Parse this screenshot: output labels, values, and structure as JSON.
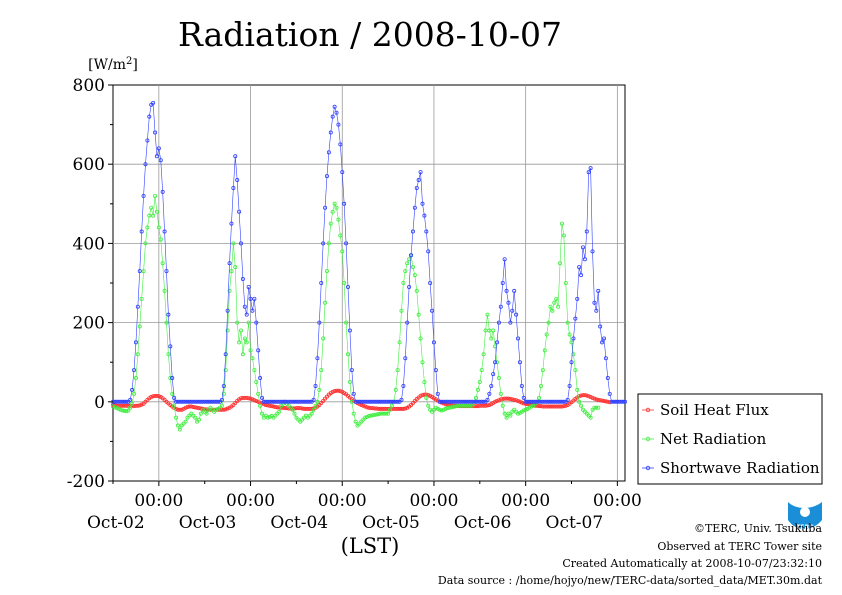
{
  "chart_data": {
    "type": "line",
    "title": "Radiation / 2008-10-07",
    "ylabel": "[W/m2]",
    "xlabel": "(LST)",
    "ylim": [
      -200,
      800
    ],
    "yticks": [
      -200,
      0,
      200,
      400,
      600,
      800
    ],
    "grid": true,
    "legend": "right",
    "x_tick_time": "00:00",
    "x_tick_days": [
      "Oct-02",
      "Oct-03",
      "Oct-04",
      "Oct-05",
      "Oct-06",
      "Oct-07"
    ],
    "x_start": "2008-10-01T12:00",
    "x_interval_minutes": 30,
    "series": [
      {
        "name": "Soil Heat Flux",
        "color": "#ff3030",
        "values": [
          -8,
          -9,
          -10,
          -10,
          -10,
          -10,
          -10,
          -10,
          -10,
          -10,
          -10,
          -11,
          -10,
          -10,
          -9,
          -7,
          -5,
          0,
          5,
          9,
          12,
          14,
          15,
          15,
          14,
          12,
          9,
          5,
          0,
          -4,
          -8,
          -12,
          -15,
          -18,
          -20,
          -20,
          -20,
          -18,
          -15,
          -13,
          -12,
          -12,
          -13,
          -14,
          -15,
          -16,
          -17,
          -18,
          -19,
          -19,
          -20,
          -20,
          -20,
          -20,
          -20,
          -20,
          -20,
          -20,
          -20,
          -19,
          -17,
          -15,
          -12,
          -8,
          -3,
          2,
          6,
          9,
          10,
          10,
          10,
          9,
          8,
          6,
          4,
          2,
          0,
          -2,
          -4,
          -6,
          -8,
          -9,
          -10,
          -11,
          -12,
          -13,
          -14,
          -14,
          -15,
          -15,
          -16,
          -16,
          -17,
          -17,
          -17,
          -17,
          -16,
          -16,
          -16,
          -17,
          -18,
          -18,
          -18,
          -18,
          -18,
          -17,
          -15,
          -12,
          -8,
          -3,
          2,
          8,
          13,
          18,
          22,
          25,
          27,
          28,
          28,
          27,
          25,
          22,
          19,
          15,
          11,
          7,
          3,
          0,
          -3,
          -6,
          -8,
          -10,
          -12,
          -14,
          -15,
          -16,
          -16,
          -17,
          -17,
          -18,
          -18,
          -18,
          -18,
          -18,
          -18,
          -18,
          -18,
          -18,
          -18,
          -18,
          -18,
          -18,
          -18,
          -17,
          -15,
          -12,
          -8,
          -3,
          2,
          7,
          11,
          15,
          17,
          18,
          18,
          17,
          15,
          12,
          9,
          6,
          3,
          0,
          -2,
          -4,
          -6,
          -7,
          -8,
          -9,
          -10,
          -10,
          -10,
          -11,
          -11,
          -11,
          -11,
          -11,
          -11,
          -11,
          -11,
          -11,
          -11,
          -11,
          -10,
          -10,
          -10,
          -10,
          -9,
          -8,
          -6,
          -3,
          0,
          2,
          4,
          6,
          7,
          8,
          8,
          8,
          7,
          6,
          5,
          4,
          2,
          0,
          -2,
          -4,
          -5,
          -6,
          -7,
          -8,
          -9,
          -10,
          -10,
          -11,
          -11,
          -12,
          -12,
          -12,
          -12,
          -12,
          -12,
          -12,
          -12,
          -12,
          -12,
          -12,
          -11,
          -10,
          -8,
          -5,
          -1,
          3,
          7,
          11,
          14,
          16,
          17,
          17,
          16,
          14,
          12,
          10,
          8,
          6,
          5,
          4,
          3,
          2,
          1,
          0,
          -1
        ]
      },
      {
        "name": "Net Radiation",
        "color": "#40ee40",
        "values": [
          -12,
          -14,
          -16,
          -18,
          -20,
          -22,
          -23,
          -24,
          -22,
          -15,
          -5,
          20,
          60,
          120,
          190,
          260,
          330,
          400,
          440,
          470,
          490,
          470,
          520,
          480,
          440,
          410,
          350,
          280,
          200,
          120,
          60,
          20,
          -10,
          -40,
          -60,
          -70,
          -60,
          -55,
          -50,
          -40,
          -35,
          -30,
          -35,
          -40,
          -50,
          -45,
          -30,
          -20,
          -25,
          -30,
          -20,
          -15,
          -20,
          -25,
          -20,
          -18,
          -15,
          -10,
          20,
          80,
          180,
          280,
          330,
          400,
          340,
          200,
          150,
          180,
          120,
          160,
          150,
          200,
          130,
          110,
          80,
          50,
          20,
          -10,
          -30,
          -40,
          -35,
          -40,
          -38,
          -36,
          -40,
          -35,
          -30,
          -25,
          -10,
          -5,
          0,
          -5,
          -10,
          -15,
          -20,
          -30,
          -40,
          -45,
          -50,
          -45,
          -40,
          -35,
          -40,
          -35,
          -30,
          -20,
          -10,
          0,
          30,
          80,
          160,
          250,
          330,
          400,
          450,
          480,
          500,
          490,
          460,
          420,
          380,
          300,
          200,
          120,
          50,
          0,
          -30,
          -50,
          -60,
          -55,
          -50,
          -45,
          -40,
          -38,
          -36,
          -35,
          -34,
          -33,
          -32,
          -31,
          -30,
          -30,
          -30,
          -30,
          -30,
          -20,
          -10,
          0,
          30,
          80,
          150,
          230,
          300,
          330,
          350,
          360,
          370,
          340,
          320,
          280,
          220,
          160,
          100,
          50,
          10,
          -10,
          -20,
          -25,
          -20,
          -15,
          -18,
          -20,
          -22,
          -20,
          -18,
          -16,
          -15,
          -14,
          -13,
          -12,
          -11,
          -10,
          -10,
          -10,
          -10,
          -10,
          -10,
          -10,
          -10,
          -5,
          10,
          30,
          50,
          80,
          120,
          180,
          220,
          180,
          160,
          180,
          140,
          100,
          60,
          20,
          -10,
          -30,
          -40,
          -30,
          -35,
          -25,
          -20,
          -25,
          -30,
          -28,
          -25,
          -22,
          -20,
          -18,
          -15,
          -12,
          -10,
          -5,
          0,
          10,
          40,
          80,
          130,
          170,
          200,
          240,
          230,
          250,
          260,
          240,
          350,
          450,
          420,
          300,
          200,
          170,
          150,
          120,
          80,
          30,
          0,
          -10,
          -20,
          -25,
          -30,
          -35,
          -40,
          -20,
          -15,
          -15,
          -15
        ]
      },
      {
        "name": "Shortwave Radiation",
        "color": "#3040ff",
        "values": [
          0,
          0,
          0,
          0,
          0,
          0,
          0,
          0,
          0,
          5,
          30,
          80,
          150,
          240,
          330,
          430,
          520,
          600,
          660,
          720,
          750,
          755,
          680,
          620,
          640,
          610,
          530,
          430,
          330,
          220,
          140,
          60,
          10,
          0,
          0,
          0,
          0,
          0,
          0,
          0,
          0,
          0,
          0,
          0,
          0,
          0,
          0,
          0,
          0,
          0,
          0,
          0,
          0,
          0,
          0,
          0,
          0,
          5,
          40,
          120,
          230,
          350,
          450,
          540,
          620,
          560,
          480,
          400,
          310,
          240,
          220,
          290,
          260,
          230,
          260,
          200,
          130,
          60,
          10,
          0,
          0,
          0,
          0,
          0,
          0,
          0,
          0,
          0,
          0,
          0,
          0,
          0,
          0,
          0,
          0,
          0,
          0,
          0,
          0,
          0,
          0,
          0,
          0,
          0,
          0,
          5,
          40,
          110,
          200,
          300,
          400,
          490,
          570,
          630,
          680,
          720,
          745,
          730,
          700,
          650,
          580,
          500,
          400,
          290,
          180,
          80,
          20,
          0,
          0,
          0,
          0,
          0,
          0,
          0,
          0,
          0,
          0,
          0,
          0,
          0,
          0,
          0,
          0,
          0,
          0,
          0,
          0,
          0,
          0,
          0,
          0,
          5,
          40,
          110,
          200,
          290,
          370,
          430,
          490,
          540,
          560,
          580,
          500,
          470,
          430,
          380,
          300,
          230,
          150,
          80,
          20,
          0,
          0,
          0,
          0,
          0,
          0,
          0,
          0,
          0,
          0,
          0,
          0,
          0,
          0,
          0,
          0,
          0,
          0,
          0,
          0,
          0,
          0,
          0,
          0,
          0,
          5,
          20,
          40,
          70,
          100,
          150,
          200,
          240,
          300,
          360,
          280,
          250,
          200,
          230,
          280,
          220,
          160,
          100,
          40,
          10,
          0,
          0,
          0,
          0,
          0,
          0,
          0,
          0,
          0,
          0,
          0,
          0,
          0,
          0,
          0,
          0,
          0,
          0,
          0,
          0,
          0,
          0,
          5,
          40,
          100,
          160,
          210,
          260,
          340,
          320,
          390,
          360,
          430,
          580,
          590,
          380,
          250,
          230,
          280,
          190,
          150,
          160,
          110,
          60,
          20,
          0,
          0,
          0,
          0,
          0,
          0,
          0,
          0
        ]
      }
    ]
  },
  "credits": {
    "copyright": "©TERC, Univ. Tsukuba",
    "site": "Observed at TERC Tower site",
    "created": "Created Automatically at 2008-10-07/23:32:10",
    "source": "Data source : /home/hojyo/new/TERC-data/sorted_data/MET.30m.dat"
  },
  "logo": {
    "text": "TERC",
    "color": "#1a8fd8"
  }
}
